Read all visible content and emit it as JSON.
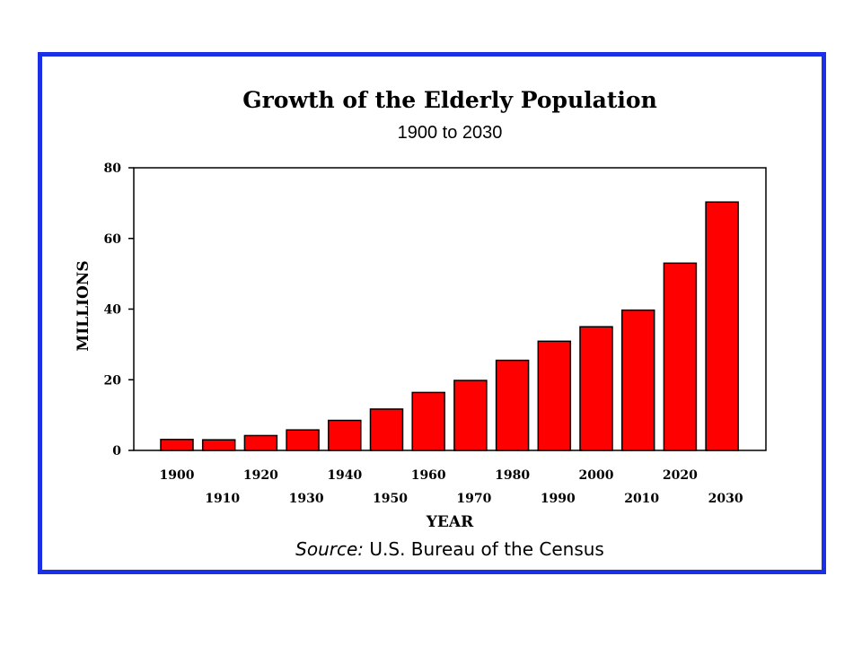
{
  "chart_data": {
    "type": "bar",
    "title": "Growth of the Elderly Population",
    "subtitle": "1900 to 2030",
    "xlabel": "YEAR",
    "ylabel": "MILLIONS",
    "categories": [
      "1900",
      "1910",
      "1920",
      "1930",
      "1940",
      "1950",
      "1960",
      "1970",
      "1980",
      "1990",
      "2000",
      "2010",
      "2020",
      "2030"
    ],
    "values": [
      3.1,
      3.0,
      4.2,
      5.8,
      8.5,
      11.7,
      16.4,
      19.8,
      25.5,
      30.9,
      35.0,
      39.7,
      53.0,
      70.3
    ],
    "ylim": [
      0,
      80
    ],
    "yticks": [
      "0",
      "20",
      "40",
      "60",
      "80"
    ],
    "bar_color": "#ff0000",
    "grid": false,
    "source_prefix": "Source:",
    "source_text": "U.S. Bureau of the Census"
  },
  "frame_color": "#1a2fe6"
}
